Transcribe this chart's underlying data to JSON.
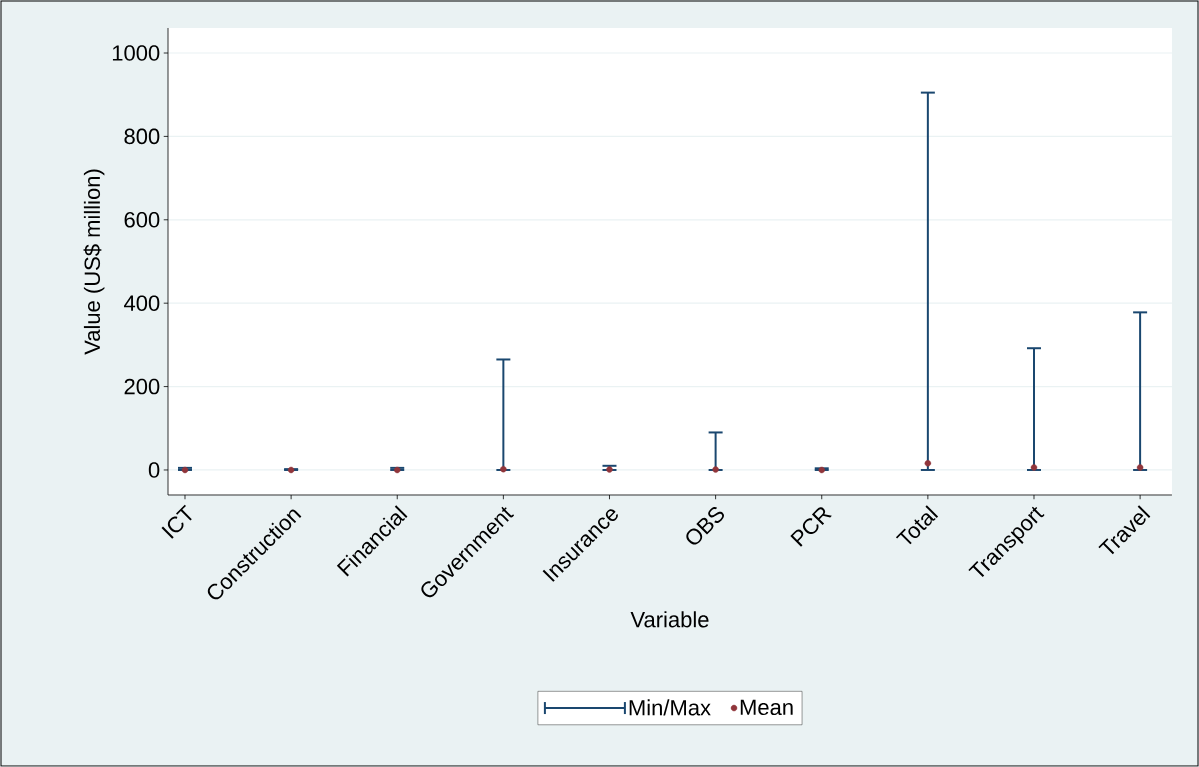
{
  "chart_data": {
    "type": "scatter",
    "xlabel": "Variable",
    "ylabel": "Value (US$ million)",
    "categories": [
      "ICT",
      "Construction",
      "Financial",
      "Government",
      "Insurance",
      "OBS",
      "PCR",
      "Total",
      "Transport",
      "Travel"
    ],
    "series": [
      {
        "name": "Min/Max",
        "color": "#1a476f",
        "values": [
          null,
          null,
          null,
          null,
          null,
          null,
          null,
          null,
          null,
          null
        ]
      },
      {
        "name": "Mean",
        "color": "#90353b",
        "values": [
          0,
          0,
          0,
          2,
          1,
          1,
          0,
          16,
          6,
          6
        ],
        "errors": [
          [
            0,
            5
          ],
          [
            0,
            2
          ],
          [
            0,
            5
          ],
          [
            0,
            265
          ],
          [
            0,
            10
          ],
          [
            0,
            90
          ],
          [
            0,
            4
          ],
          [
            0,
            905
          ],
          [
            0,
            292
          ],
          [
            0,
            378
          ]
        ]
      }
    ],
    "marker": "circle",
    "ylim": [
      -60,
      1060
    ],
    "yticks": [
      0,
      200,
      400,
      600,
      800,
      1000
    ],
    "grid": "y",
    "legend": "bottom"
  }
}
